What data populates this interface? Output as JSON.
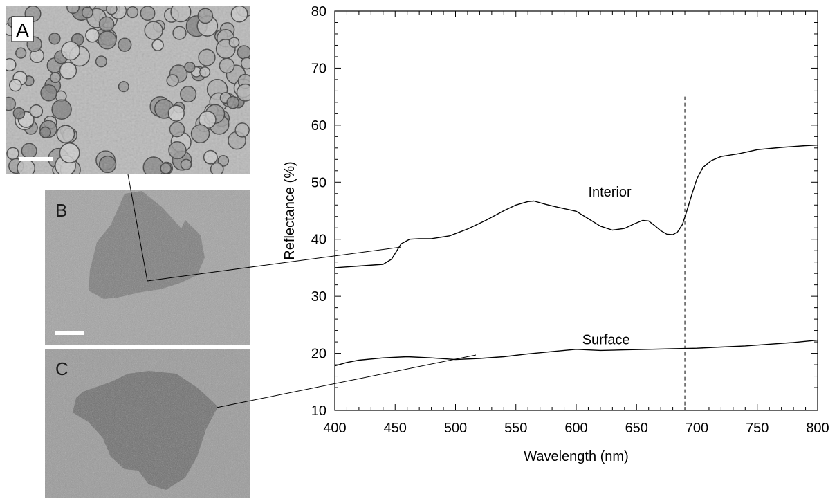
{
  "panels": [
    {
      "label": "A",
      "description": "micrograph"
    },
    {
      "label": "B",
      "description": "sample photo"
    },
    {
      "label": "C",
      "description": "sample photo"
    }
  ],
  "chart_data": {
    "type": "line",
    "xlabel": "Wavelength (nm)",
    "ylabel": "Reflectance (%)",
    "xlim": [
      400,
      800
    ],
    "ylim": [
      10,
      80
    ],
    "xticks": [
      400,
      450,
      500,
      550,
      600,
      650,
      700,
      750,
      800
    ],
    "yticks": [
      10,
      20,
      30,
      40,
      50,
      60,
      70,
      80
    ],
    "grid": false,
    "reference_line_x": 690,
    "series": [
      {
        "name": "Interior",
        "x": [
          400,
          420,
          440,
          447,
          455,
          462,
          470,
          480,
          495,
          510,
          525,
          540,
          550,
          560,
          565,
          575,
          585,
          600,
          610,
          620,
          630,
          640,
          648,
          655,
          660,
          665,
          670,
          675,
          680,
          684,
          688,
          692,
          696,
          700,
          705,
          712,
          720,
          735,
          750,
          770,
          790,
          800
        ],
        "values": [
          35.0,
          35.3,
          35.6,
          36.5,
          39.2,
          40.0,
          40.1,
          40.1,
          40.6,
          41.8,
          43.3,
          45.0,
          46.0,
          46.6,
          46.7,
          46.1,
          45.6,
          44.9,
          43.6,
          42.3,
          41.6,
          41.9,
          42.7,
          43.3,
          43.2,
          42.4,
          41.5,
          40.9,
          40.8,
          41.3,
          42.6,
          45.2,
          48.0,
          50.6,
          52.6,
          53.8,
          54.5,
          55.0,
          55.7,
          56.1,
          56.4,
          56.5
        ]
      },
      {
        "name": "Surface",
        "x": [
          400,
          410,
          420,
          440,
          460,
          480,
          500,
          520,
          540,
          560,
          580,
          600,
          620,
          640,
          660,
          680,
          700,
          720,
          740,
          760,
          780,
          800
        ],
        "values": [
          17.8,
          18.4,
          18.8,
          19.2,
          19.4,
          19.2,
          18.9,
          19.1,
          19.4,
          19.9,
          20.3,
          20.7,
          20.5,
          20.6,
          20.7,
          20.8,
          20.9,
          21.1,
          21.3,
          21.6,
          21.9,
          22.3
        ]
      }
    ],
    "annotations": [
      {
        "text": "Interior",
        "x": 610,
        "y": 47.5
      },
      {
        "text": "Surface",
        "x": 605,
        "y": 21.6
      }
    ]
  }
}
